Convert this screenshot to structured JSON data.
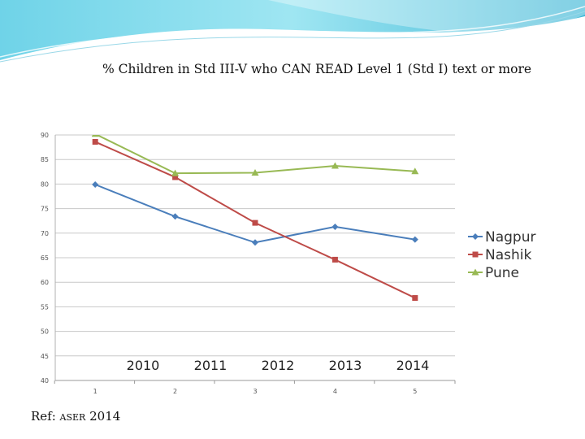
{
  "chart_data": {
    "type": "line",
    "title": "% Children in Std III-V who CAN READ Level 1 (Std I) text or more",
    "x": [
      1,
      2,
      3,
      4,
      5
    ],
    "x_tick_labels": [
      "1",
      "2",
      "3",
      "4",
      "5"
    ],
    "x_category_labels": [
      "2010",
      "2011",
      "2012",
      "2013",
      "2014"
    ],
    "y_tick_labels": [
      "40",
      "45",
      "50",
      "55",
      "60",
      "65",
      "70",
      "75",
      "80",
      "85",
      "90"
    ],
    "ylim": [
      40,
      90
    ],
    "grid": true,
    "legend_position": "right",
    "series": [
      {
        "name": "Nagpur",
        "color": "#4a7ebb",
        "marker": "diamond",
        "values": [
          79.9,
          73.4,
          68.1,
          71.3,
          68.7
        ]
      },
      {
        "name": "Nashik",
        "color": "#be4b48",
        "marker": "square",
        "values": [
          88.6,
          81.4,
          72.1,
          64.6,
          56.8
        ]
      },
      {
        "name": "Pune",
        "color": "#98b954",
        "marker": "triangle",
        "values": [
          90.2,
          82.2,
          82.3,
          83.7,
          82.6
        ]
      }
    ]
  },
  "reference": {
    "prefix": "Ref: ",
    "source": "ASER",
    "year": " 2014"
  }
}
